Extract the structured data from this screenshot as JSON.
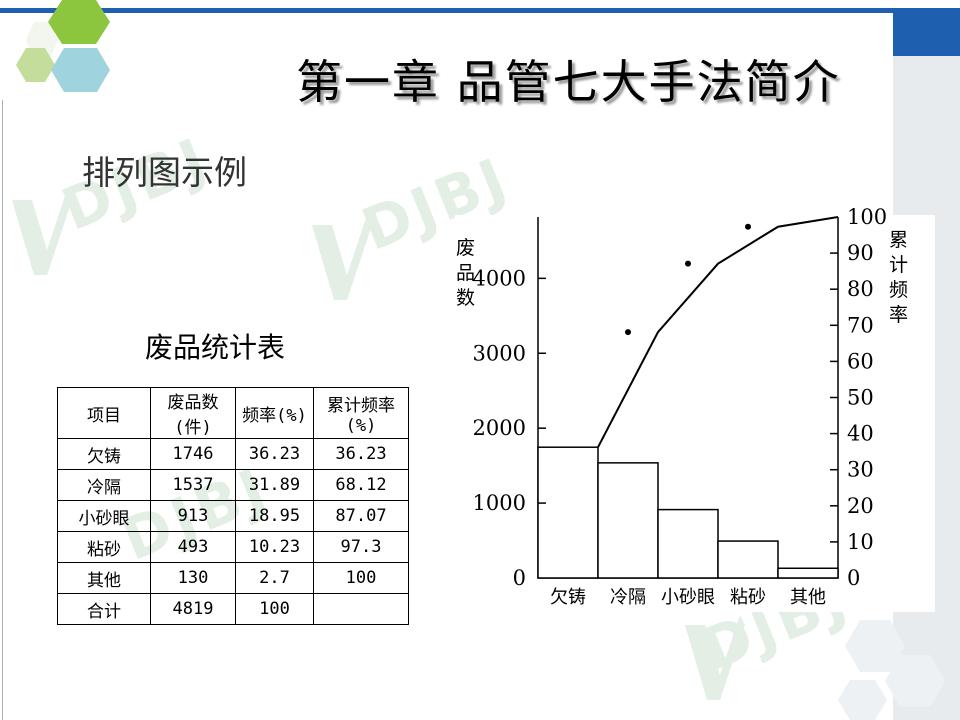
{
  "title": "第一章  品管七大手法简介",
  "subtitle": "排列图示例",
  "watermark_text": "DJBJ",
  "colors": {
    "accent_blue": "#1f5fb0",
    "hex_green": "#8cc63f",
    "hex_light_green": "#c5dd9b",
    "hex_cyan": "#9fd3dd",
    "watermark": "#e3eee5"
  },
  "table": {
    "title": "废品统计表",
    "headers": [
      "项目",
      "废品数(件)",
      "频率(%)",
      "累计频率(%)"
    ],
    "rows": [
      [
        "欠铸",
        "1746",
        "36.23",
        "36.23"
      ],
      [
        "冷隔",
        "1537",
        "31.89",
        "68.12"
      ],
      [
        "小砂眼",
        "913",
        "18.95",
        "87.07"
      ],
      [
        "粘砂",
        "493",
        "10.23",
        "97.3"
      ],
      [
        "其他",
        "130",
        "2.7",
        "100"
      ],
      [
        "合计",
        "4819",
        "100",
        ""
      ]
    ]
  },
  "chart_data": {
    "type": "bar",
    "categories": [
      "欠铸",
      "冷隔",
      "小砂眼",
      "粘砂",
      "其他"
    ],
    "series": [
      {
        "type": "bar",
        "values": [
          1746,
          1537,
          913,
          493,
          130
        ]
      },
      {
        "type": "line",
        "axis": "right",
        "values": [
          36.23,
          68.12,
          87.07,
          97.3,
          100
        ]
      }
    ],
    "ylabel": "废品数",
    "y2label": "累计频率",
    "yticks": [
      "0",
      "1000",
      "2000",
      "3000",
      "4000"
    ],
    "y2ticks": [
      "0",
      "10",
      "20",
      "30",
      "40",
      "50",
      "60",
      "70",
      "80",
      "90",
      "100"
    ],
    "ylim": [
      0,
      4819
    ],
    "y2lim": [
      0,
      100
    ],
    "grid": false,
    "legend": "none"
  }
}
